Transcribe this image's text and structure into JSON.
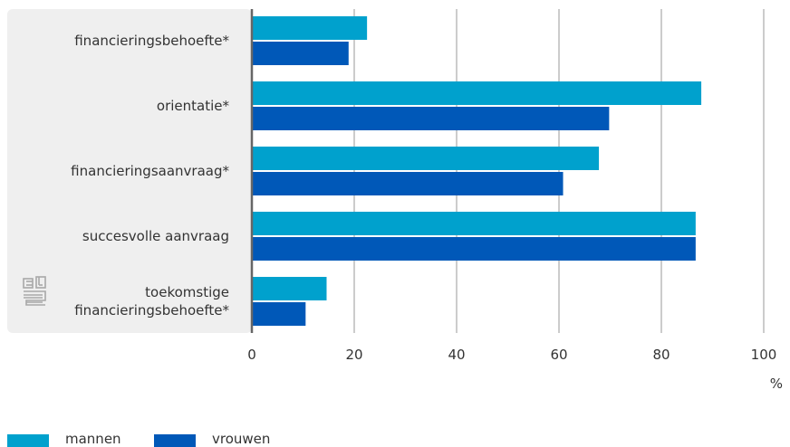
{
  "chart_data": {
    "type": "bar",
    "orientation": "horizontal",
    "categories": [
      [
        "financieringsbehoefte*"
      ],
      [
        "orientatie*"
      ],
      [
        "financieringsaanvraag*"
      ],
      [
        "succesvolle aanvraag"
      ],
      [
        "toekomstige",
        "financieringsbehoefte*"
      ]
    ],
    "series": [
      {
        "name": "mannen",
        "color": "#00a1cd",
        "values": [
          22.5,
          87.8,
          67.8,
          86.7,
          14.6
        ]
      },
      {
        "name": "vrouwen",
        "color": "#0058b8",
        "values": [
          18.9,
          69.8,
          60.8,
          86.7,
          10.5
        ]
      }
    ],
    "xticks": [
      "0",
      "20",
      "40",
      "60",
      "80",
      "100"
    ],
    "xlim": [
      0,
      100
    ],
    "xunit": "%",
    "grid": true,
    "legend_position": "bottom-left"
  },
  "logo": {
    "text": "cbs",
    "icon": "cbs-logo-icon"
  }
}
